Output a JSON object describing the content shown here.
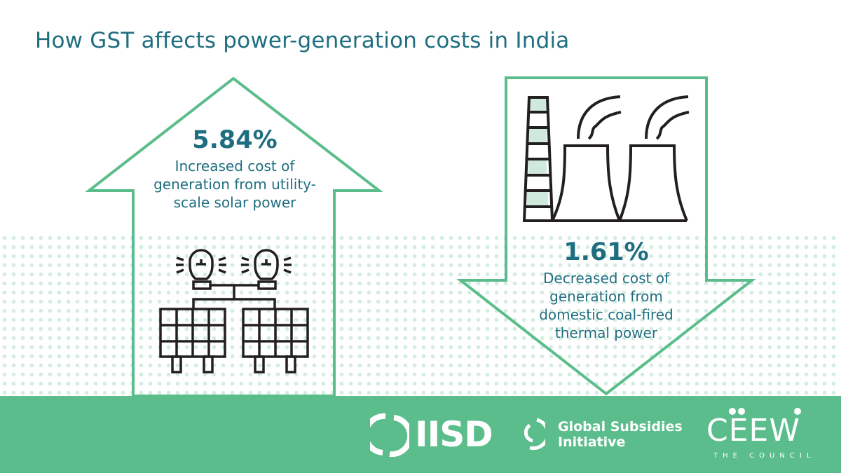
{
  "title": "How GST affects power-generation costs in India",
  "solar": {
    "value": "5.84%",
    "description": "Increased cost of generation from utility-scale solar power",
    "direction": "up",
    "icon": "solar-panels-lightbulbs-icon"
  },
  "coal": {
    "value": "1.61%",
    "description": "Decreased cost of generation from domestic coal-fired thermal power",
    "direction": "down",
    "icon": "thermal-power-plant-icon"
  },
  "footer": {
    "logos": {
      "iisd": "IISD",
      "gsi_line1": "Global Subsidies",
      "gsi_line2": "Initiative",
      "ceew": "CEEW",
      "ceew_tagline": "THE COUNCIL"
    }
  },
  "colors": {
    "title": "#1f6e80",
    "accent_green": "#5bbd8c",
    "dot_pattern": "#d3ede1",
    "icon_stroke": "#231f20"
  }
}
